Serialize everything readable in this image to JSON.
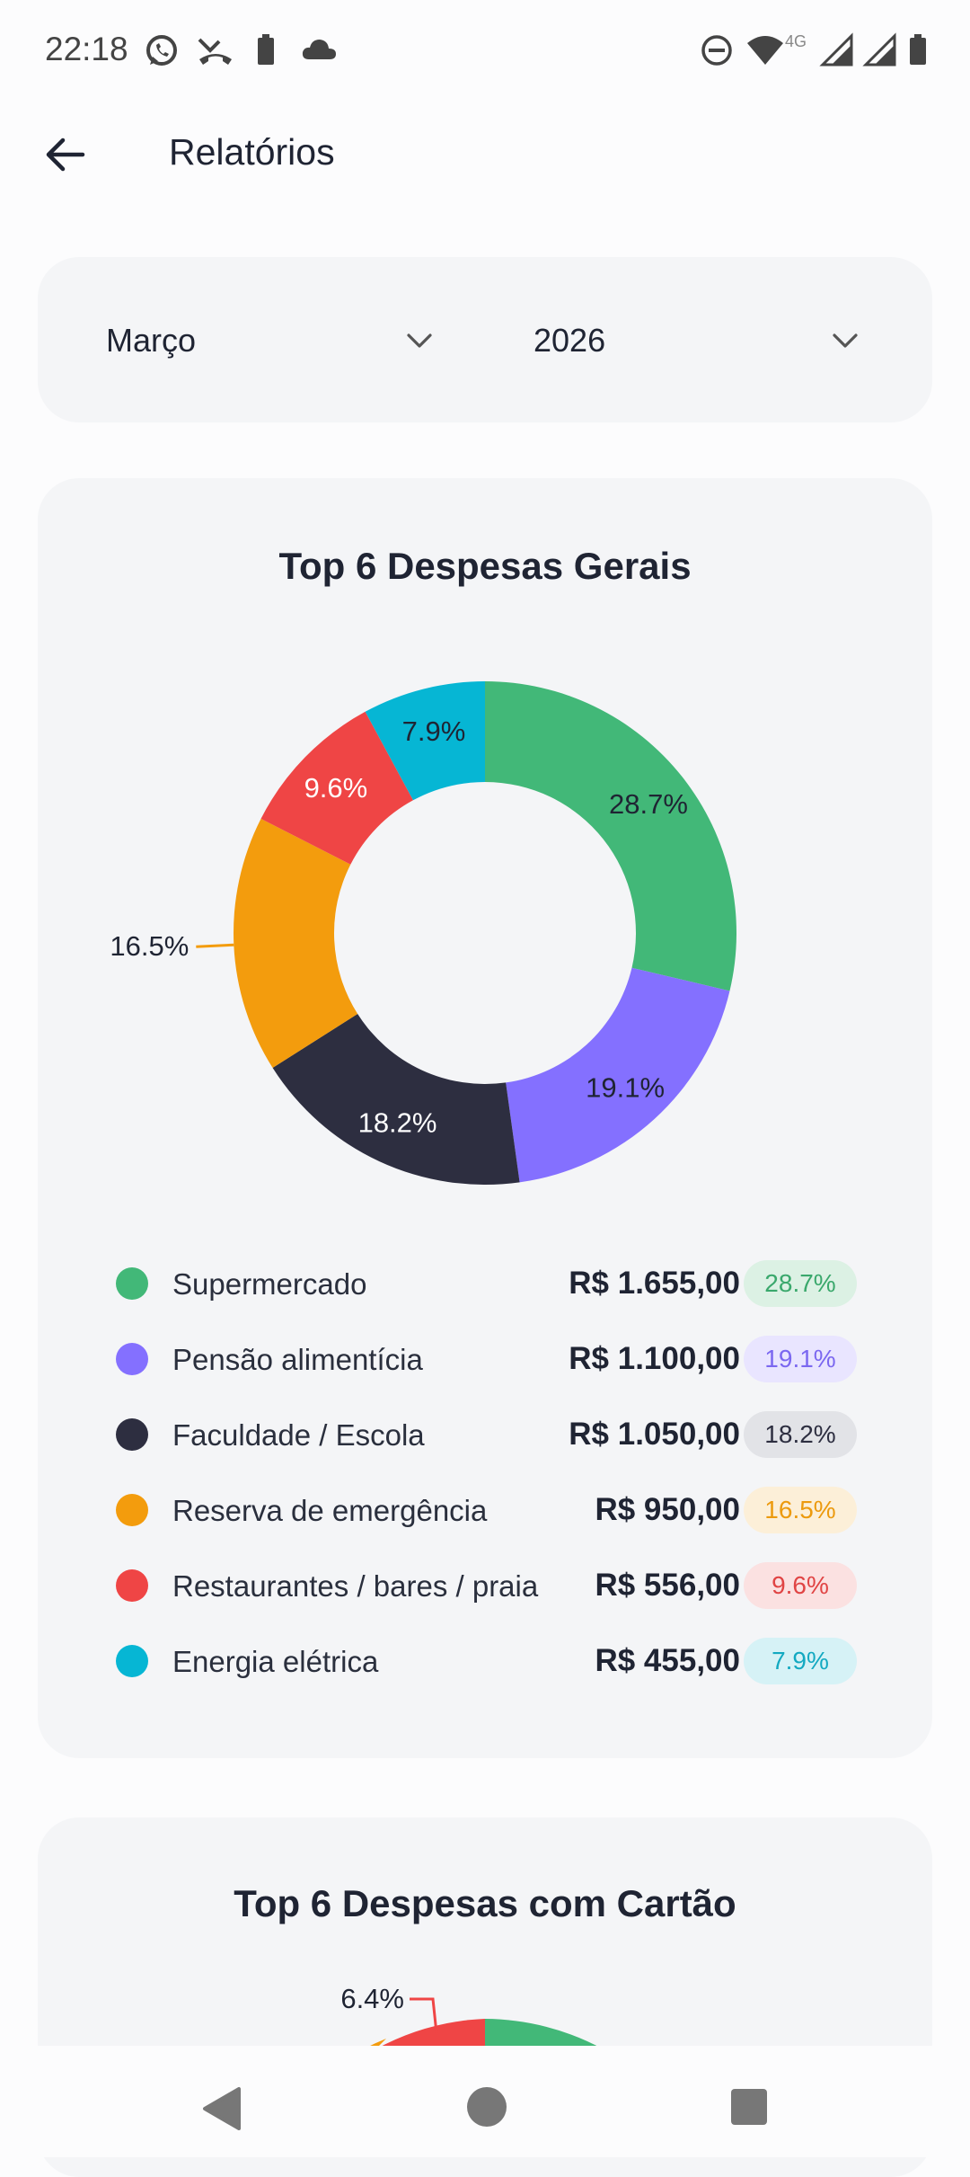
{
  "status_bar": {
    "time": "22:18",
    "network_label": "4G",
    "icons": [
      "whatsapp-icon",
      "missed-call-icon",
      "battery-saver-icon",
      "cloud-icon",
      "dnd-icon",
      "wifi-icon",
      "signal-icon",
      "signal-icon",
      "battery-icon"
    ]
  },
  "header": {
    "title": "Relatórios",
    "back_icon": "arrow-left-icon"
  },
  "filters": {
    "month": {
      "value": "Março",
      "icon": "chevron-down-icon"
    },
    "year": {
      "value": "2026",
      "icon": "chevron-down-icon"
    }
  },
  "general_card": {
    "title": "Top 6 Despesas Gerais",
    "chart_data": {
      "type": "pie",
      "variant": "donut",
      "title": "Top 6 Despesas Gerais",
      "categories": [
        "Supermercado",
        "Pensão alimentícia",
        "Faculdade / Escola",
        "Reserva de emergência",
        "Restaurantes / bares / praia",
        "Energia elétrica"
      ],
      "values": [
        28.7,
        19.1,
        18.2,
        16.5,
        9.6,
        7.9
      ],
      "labels": [
        "28.7%",
        "19.1%",
        "18.2%",
        "16.5%",
        "9.6%",
        "7.9%"
      ],
      "colors": [
        "#42b878",
        "#8470ff",
        "#2d2e40",
        "#f39c0d",
        "#ef4545",
        "#06b6d4"
      ]
    },
    "legend": [
      {
        "name": "Supermercado",
        "amount": "R$ 1.655,00",
        "percent": "28.7%",
        "color": "#42b878",
        "pill_bg": "#dcf1e4",
        "pill_fg": "#3aa86c"
      },
      {
        "name": "Pensão alimentícia",
        "amount": "R$ 1.100,00",
        "percent": "19.1%",
        "color": "#8470ff",
        "pill_bg": "#e9e5ff",
        "pill_fg": "#7b68f0"
      },
      {
        "name": "Faculdade / Escola",
        "amount": "R$ 1.050,00",
        "percent": "18.2%",
        "color": "#2d2e40",
        "pill_bg": "#e2e3e7",
        "pill_fg": "#2d2e40"
      },
      {
        "name": "Reserva de emergência",
        "amount": "R$ 950,00",
        "percent": "16.5%",
        "color": "#f39c0d",
        "pill_bg": "#fcefd8",
        "pill_fg": "#ec9a0e"
      },
      {
        "name": "Restaurantes / bares / praia",
        "amount": "R$ 556,00",
        "percent": "9.6%",
        "color": "#ef4545",
        "pill_bg": "#fbe1e1",
        "pill_fg": "#e04444"
      },
      {
        "name": "Energia elétrica",
        "amount": "R$ 455,00",
        "percent": "7.9%",
        "color": "#06b6d4",
        "pill_bg": "#d6f2f6",
        "pill_fg": "#13a9c1"
      }
    ]
  },
  "card_card": {
    "title": "Top 6 Despesas com Cartão",
    "visible_label": "6.4%"
  },
  "nav": {
    "back": "nav-back-icon",
    "home": "nav-home-icon",
    "recents": "nav-recents-icon"
  }
}
